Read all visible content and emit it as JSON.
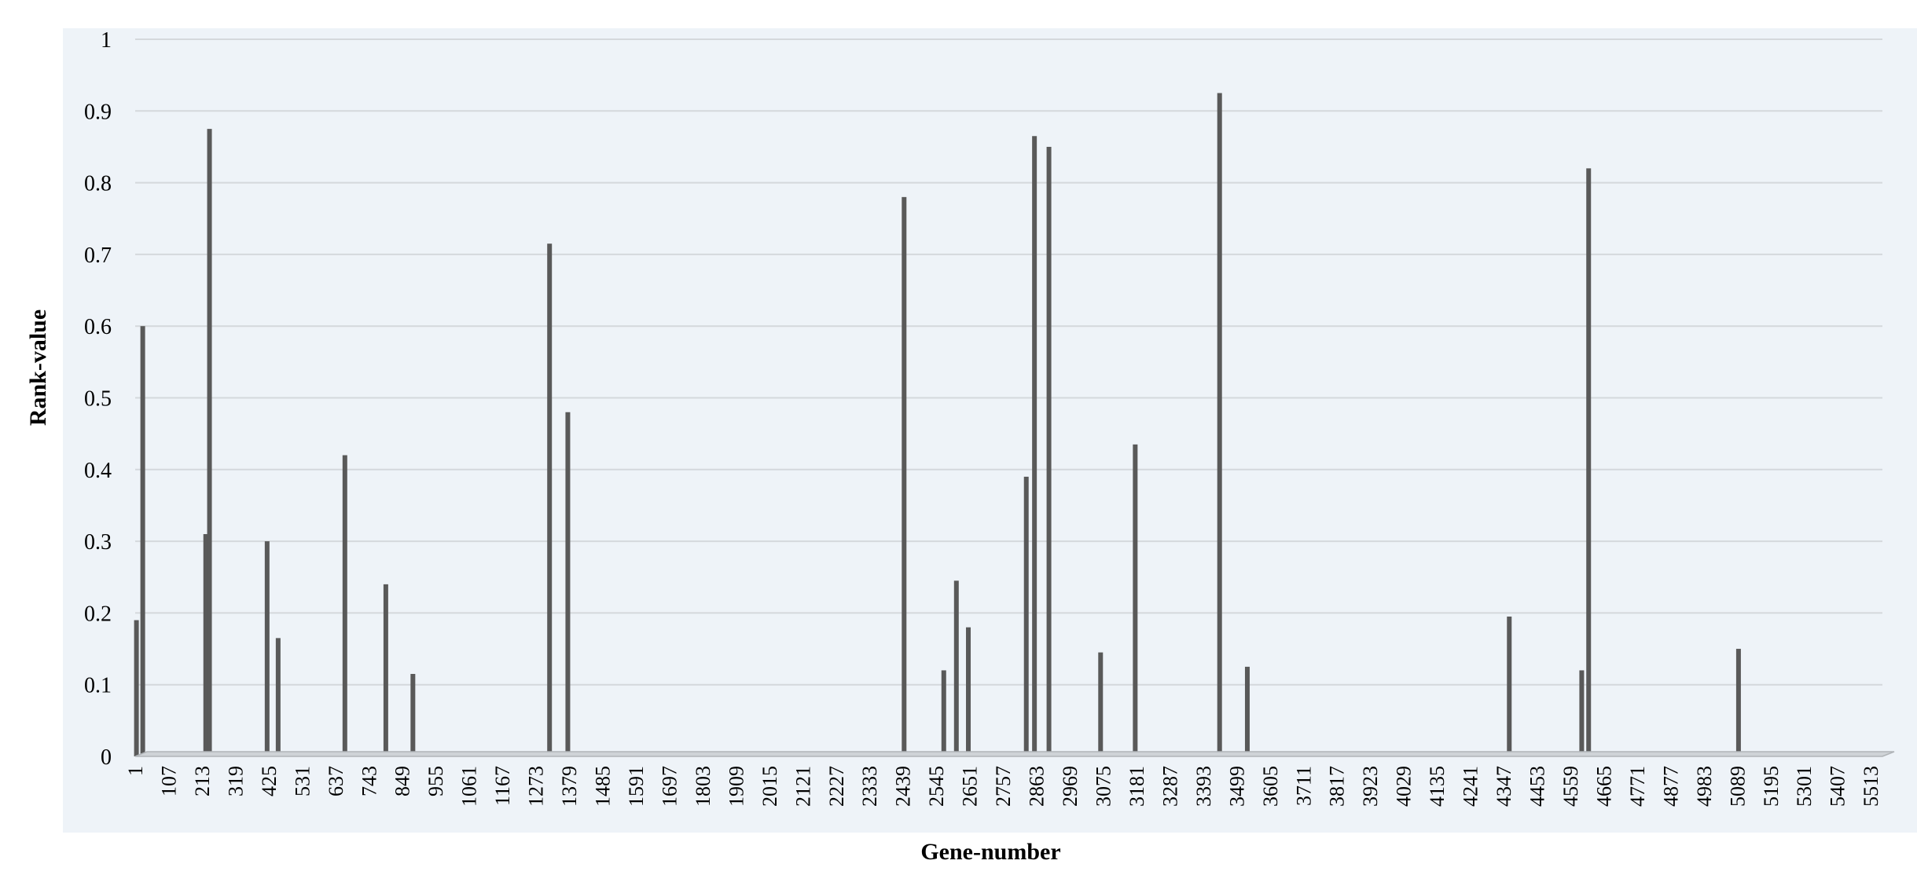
{
  "chart_data": {
    "type": "bar",
    "title": "",
    "xlabel": "Gene-number",
    "ylabel": "Rank-value",
    "xlim": [
      1,
      5550
    ],
    "ylim": [
      0,
      1
    ],
    "yticks": [
      "0",
      "0.1",
      "0.2",
      "0.3",
      "0.4",
      "0.5",
      "0.6",
      "0.7",
      "0.8",
      "0.9",
      "1"
    ],
    "xticks": [
      "1",
      "107",
      "213",
      "319",
      "425",
      "531",
      "637",
      "743",
      "849",
      "955",
      "1061",
      "1167",
      "1273",
      "1379",
      "1485",
      "1591",
      "1697",
      "1803",
      "1909",
      "2015",
      "2121",
      "2227",
      "2333",
      "2439",
      "2545",
      "2651",
      "2757",
      "2863",
      "2969",
      "3075",
      "3181",
      "3287",
      "3393",
      "3499",
      "3605",
      "3711",
      "3817",
      "3923",
      "4029",
      "4135",
      "4241",
      "4347",
      "4453",
      "4559",
      "4665",
      "4771",
      "4877",
      "4983",
      "5089",
      "5195",
      "5301",
      "5407",
      "5513"
    ],
    "grid": true,
    "legend": "none",
    "colors": {
      "bar": "#595959",
      "plot_bg": "#eef3f8",
      "grid": "#d4d8dc",
      "axis": "#b0b4b8"
    },
    "series": [
      {
        "x": [
          5,
          25,
          225,
          237,
          420,
          455,
          667,
          797,
          883,
          1317,
          1375,
          2443,
          2569,
          2609,
          2647,
          2831,
          2857,
          2903,
          3067,
          3177,
          3445,
          3533,
          4365,
          4595,
          4617,
          5093
        ],
        "values": [
          0.19,
          0.6,
          0.31,
          0.875,
          0.3,
          0.165,
          0.42,
          0.24,
          0.115,
          0.715,
          0.48,
          0.78,
          0.12,
          0.245,
          0.18,
          0.39,
          0.865,
          0.85,
          0.145,
          0.435,
          0.925,
          0.125,
          0.195,
          0.12,
          0.82,
          0.15
        ]
      }
    ]
  }
}
